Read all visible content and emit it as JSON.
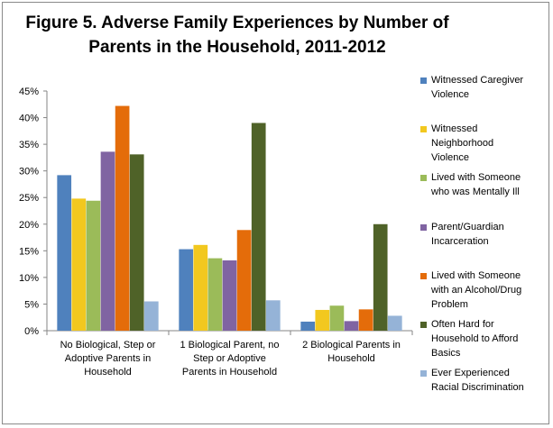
{
  "chart_data": {
    "type": "bar",
    "title_lines": [
      "Figure 5.  Adverse Family Experiences by Number of",
      "Parents in the Household,  2011-2012"
    ],
    "ylim": [
      0,
      45
    ],
    "yticks": [
      "0%",
      "5%",
      "10%",
      "15%",
      "20%",
      "25%",
      "30%",
      "35%",
      "40%",
      "45%"
    ],
    "y_unit": "%",
    "grid": false,
    "legend_position": "right",
    "categories": [
      [
        "No Biological, Step or",
        "Adoptive Parents in",
        "Household"
      ],
      [
        "1 Biological Parent, no",
        "Step or Adoptive",
        "Parents in Household"
      ],
      [
        "2 Biological Parents in",
        "Household"
      ]
    ],
    "series": [
      {
        "name": [
          "Witnessed Caregiver",
          "Violence"
        ],
        "color": "#4F81BD",
        "values": [
          29.2,
          15.3,
          1.7
        ]
      },
      {
        "name": [
          "Witnessed",
          "Neighborhood",
          "Violence"
        ],
        "color": "#F2C81F",
        "values": [
          24.8,
          16.1,
          3.9
        ]
      },
      {
        "name": [
          "Lived with Someone",
          "who was Mentally Ill"
        ],
        "color": "#9BBB59",
        "values": [
          24.4,
          13.6,
          4.7
        ]
      },
      {
        "name": [
          "Parent/Guardian",
          "Incarceration"
        ],
        "color": "#8064A2",
        "values": [
          33.6,
          13.2,
          1.8
        ]
      },
      {
        "name": [
          "Lived with Someone",
          "with an Alcohol/Drug",
          "Problem"
        ],
        "color": "#E46C0A",
        "values": [
          42.2,
          18.9,
          4.0
        ]
      },
      {
        "name": [
          "Often Hard for",
          "Household to Afford",
          "Basics"
        ],
        "color": "#4F6228",
        "values": [
          33.1,
          39.0,
          20.0
        ]
      },
      {
        "name": [
          "Ever Experienced",
          "Racial Discrimination"
        ],
        "color": "#95B3D7",
        "values": [
          5.5,
          5.7,
          2.8
        ]
      }
    ]
  }
}
